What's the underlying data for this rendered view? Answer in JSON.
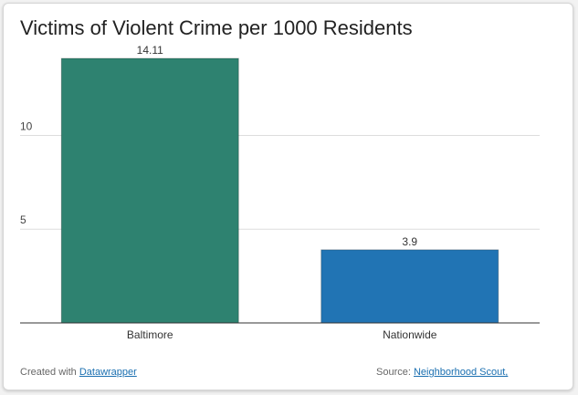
{
  "chart_data": {
    "type": "bar",
    "title": "Victims of Violent Crime per 1000 Residents",
    "categories": [
      "Baltimore",
      "Nationwide"
    ],
    "values": [
      14.11,
      3.9
    ],
    "value_labels": [
      "14.11",
      "3.9"
    ],
    "colors": [
      "#2e8270",
      "#2174b4"
    ],
    "yticks": [
      {
        "value": 5,
        "label": "5"
      },
      {
        "value": 10,
        "label": "10"
      }
    ],
    "ylim": [
      0,
      14.11
    ],
    "grid": true,
    "legend": "none"
  },
  "footer": {
    "created_prefix": "Created with",
    "created_link": "Datawrapper",
    "source_prefix": "Source:",
    "source_link": "Neighborhood Scout,"
  }
}
